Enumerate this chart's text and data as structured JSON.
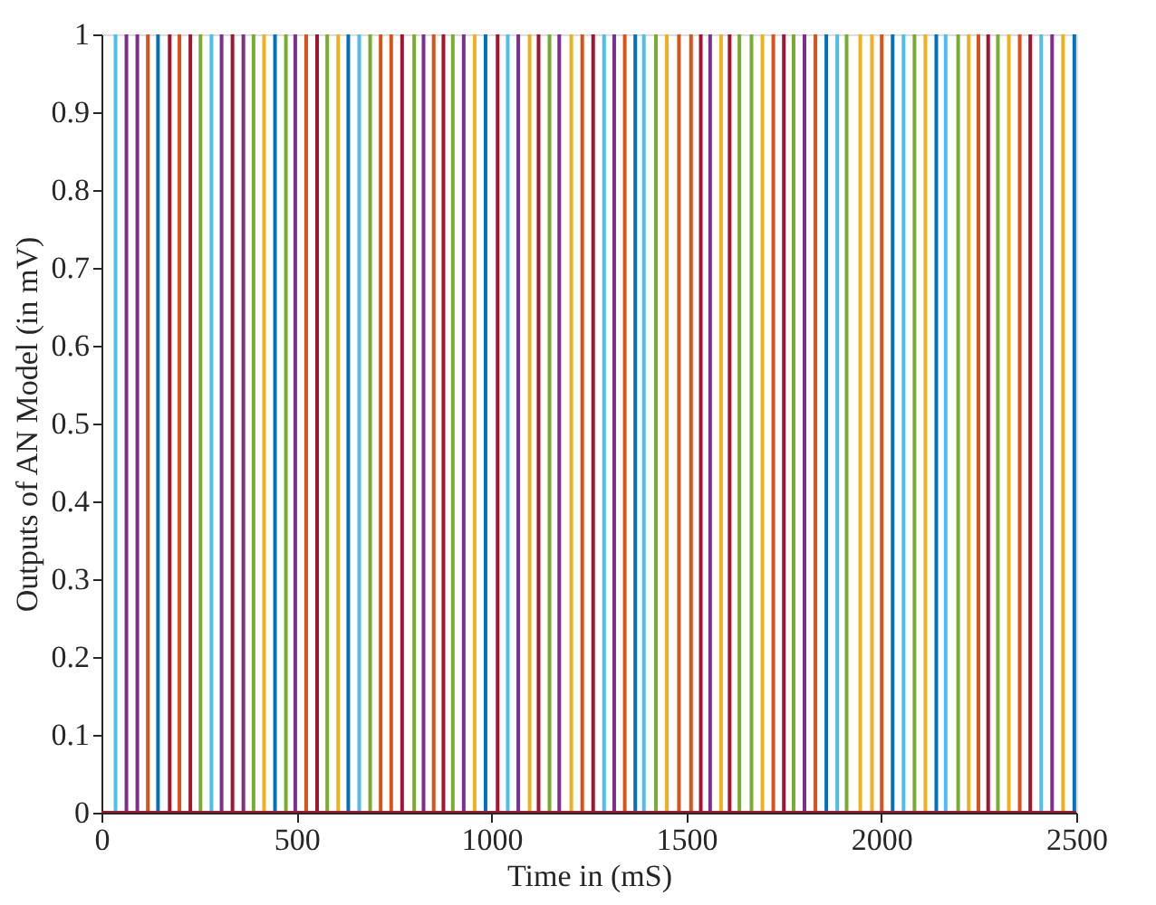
{
  "chart_data": {
    "type": "line",
    "xlabel": "Time in (mS)",
    "ylabel": "Outputs of AN Model (in mV)",
    "xlim": [
      0,
      2500
    ],
    "ylim": [
      0,
      1
    ],
    "xticks": [
      0,
      500,
      1000,
      1500,
      2000,
      2500
    ],
    "yticks": [
      0,
      0.1,
      0.2,
      0.3,
      0.4,
      0.5,
      0.6,
      0.7,
      0.8,
      0.9,
      1
    ],
    "grid": false,
    "legend": false,
    "marker": "none",
    "line_style": "solid",
    "series": [
      {
        "color": "#0072bd",
        "x": [
          0,
          145,
          145,
          145,
          445,
          445,
          445,
          633,
          633,
          633,
          985,
          985,
          985,
          1369,
          1369,
          1369,
          1859,
          1859,
          1859,
          2029,
          2029,
          2029,
          2141,
          2141,
          2141,
          2495,
          2495,
          2495,
          2500
        ],
        "values": [
          0,
          0,
          1,
          0,
          0,
          1,
          0,
          0,
          1,
          0,
          0,
          1,
          0,
          0,
          1,
          0,
          0,
          1,
          0,
          0,
          1,
          0,
          0,
          1,
          0,
          0,
          1,
          0,
          0
        ]
      },
      {
        "color": "#d95319",
        "x": [
          0,
          119,
          119,
          119,
          200,
          200,
          200,
          525,
          525,
          525,
          716,
          716,
          716,
          743,
          743,
          743,
          852,
          852,
          852,
          1233,
          1233,
          1233,
          1342,
          1342,
          1342,
          1481,
          1481,
          1481,
          1512,
          1512,
          1512,
          1723,
          1723,
          1723,
          1831,
          1831,
          1831,
          2001,
          2001,
          2001,
          2249,
          2249,
          2249,
          2355,
          2355,
          2355,
          2500
        ],
        "values": [
          0,
          0,
          1,
          0,
          0,
          1,
          0,
          0,
          1,
          0,
          0,
          1,
          0,
          0,
          1,
          0,
          0,
          1,
          0,
          0,
          1,
          0,
          0,
          1,
          0,
          0,
          1,
          0,
          0,
          1,
          0,
          0,
          1,
          0,
          0,
          1,
          0,
          0,
          1,
          0,
          0,
          1,
          0,
          0,
          1,
          0,
          0
        ]
      },
      {
        "color": "#edb120",
        "x": [
          0,
          417,
          417,
          417,
          607,
          607,
          607,
          957,
          957,
          957,
          1098,
          1098,
          1098,
          1205,
          1205,
          1205,
          1450,
          1450,
          1450,
          1589,
          1589,
          1589,
          1695,
          1695,
          1695,
          1946,
          1946,
          1946,
          1976,
          1976,
          1976,
          2113,
          2113,
          2113,
          2224,
          2224,
          2224,
          2327,
          2327,
          2327,
          2466,
          2466,
          2466,
          2500
        ],
        "values": [
          0,
          0,
          1,
          0,
          0,
          1,
          0,
          0,
          1,
          0,
          0,
          1,
          0,
          0,
          1,
          0,
          0,
          1,
          0,
          0,
          1,
          0,
          0,
          1,
          0,
          0,
          1,
          0,
          0,
          1,
          0,
          0,
          1,
          0,
          0,
          1,
          0,
          0,
          1,
          0,
          0,
          1,
          0,
          0
        ]
      },
      {
        "color": "#7e2f8e",
        "x": [
          0,
          64,
          64,
          64,
          92,
          92,
          92,
          308,
          308,
          308,
          364,
          364,
          364,
          497,
          497,
          497,
          826,
          826,
          826,
          929,
          929,
          929,
          1069,
          1069,
          1069,
          1174,
          1174,
          1174,
          1315,
          1315,
          1315,
          1561,
          1561,
          1561,
          1803,
          1803,
          1803,
          2438,
          2438,
          2438,
          2500
        ],
        "values": [
          0,
          0,
          1,
          0,
          0,
          1,
          0,
          0,
          1,
          0,
          0,
          1,
          0,
          0,
          1,
          0,
          0,
          1,
          0,
          0,
          1,
          0,
          0,
          1,
          0,
          0,
          1,
          0,
          0,
          1,
          0,
          0,
          1,
          0,
          0,
          1,
          0,
          0,
          1,
          0,
          0
        ]
      },
      {
        "color": "#77ac30",
        "x": [
          0,
          254,
          254,
          254,
          390,
          390,
          390,
          473,
          473,
          473,
          579,
          579,
          579,
          689,
          689,
          689,
          802,
          802,
          802,
          901,
          901,
          901,
          1149,
          1149,
          1149,
          1422,
          1422,
          1422,
          1636,
          1636,
          1636,
          1667,
          1667,
          1667,
          1775,
          1775,
          1775,
          1911,
          1911,
          1911,
          2085,
          2085,
          2085,
          2197,
          2197,
          2197,
          2299,
          2299,
          2299,
          2500
        ],
        "values": [
          0,
          0,
          1,
          0,
          0,
          1,
          0,
          0,
          1,
          0,
          0,
          1,
          0,
          0,
          1,
          0,
          0,
          1,
          0,
          0,
          1,
          0,
          0,
          1,
          0,
          0,
          1,
          0,
          0,
          1,
          0,
          0,
          1,
          0,
          0,
          1,
          0,
          0,
          1,
          0,
          0,
          1,
          0,
          0,
          1,
          0,
          0,
          1,
          0,
          0
        ]
      },
      {
        "color": "#4dbeee",
        "x": [
          0,
          36,
          36,
          36,
          282,
          282,
          282,
          661,
          661,
          661,
          1042,
          1042,
          1042,
          1289,
          1289,
          1289,
          1391,
          1391,
          1391,
          1887,
          1887,
          1887,
          2057,
          2057,
          2057,
          2165,
          2165,
          2165,
          2410,
          2410,
          2410,
          2500
        ],
        "values": [
          0,
          0,
          1,
          0,
          0,
          1,
          0,
          0,
          1,
          0,
          0,
          1,
          0,
          0,
          1,
          0,
          0,
          1,
          0,
          0,
          1,
          0,
          0,
          1,
          0,
          0,
          1,
          0,
          0,
          1,
          0,
          0
        ]
      },
      {
        "color": "#a2142f",
        "x": [
          0,
          175,
          175,
          175,
          228,
          228,
          228,
          336,
          336,
          336,
          553,
          553,
          553,
          771,
          771,
          771,
          877,
          877,
          877,
          1016,
          1016,
          1016,
          1121,
          1121,
          1121,
          1261,
          1261,
          1261,
          1537,
          1537,
          1537,
          1611,
          1611,
          1611,
          1750,
          1750,
          1750,
          2274,
          2274,
          2274,
          2382,
          2382,
          2382,
          2500
        ],
        "values": [
          0,
          0,
          1,
          0,
          0,
          1,
          0,
          0,
          1,
          0,
          0,
          1,
          0,
          0,
          1,
          0,
          0,
          1,
          0,
          0,
          1,
          0,
          0,
          1,
          0,
          0,
          1,
          0,
          0,
          1,
          0,
          0,
          1,
          0,
          0,
          1,
          0,
          0,
          1,
          0,
          0,
          1,
          0,
          0
        ]
      }
    ]
  }
}
